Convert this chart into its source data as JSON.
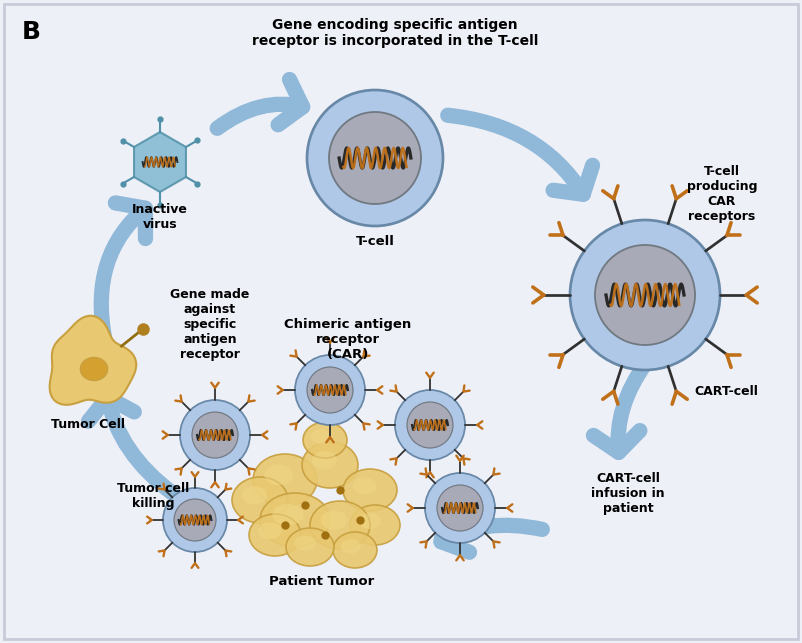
{
  "background_color": "#eef0f8",
  "border_color": "#c8ccd8",
  "title_B": "B",
  "top_label": "Gene encoding specific antigen\nreceptor is incorporated in the T-cell",
  "labels": {
    "inactive_virus": "Inactive\nvirus",
    "tumor_cell": "Tumor Cell",
    "gene_made": "Gene made\nagainst\nspecific\nantigen\nreceptor",
    "chimeric": "Chimeric antigen\nreceptor\n(CAR)",
    "t_cell": "T-cell",
    "t_cell_producing": "T-cell\nproducing\nCAR\nreceptors",
    "cart_cell": "CART-cell",
    "cart_infusion": "CART-cell\ninfusion in\npatient",
    "tumor_cell_killing": "Tumor cell\nkilling",
    "patient_tumor": "Patient Tumor"
  },
  "cell_blue_outer": "#b0c8e8",
  "cell_nucleus_color": "#a8aab8",
  "cell_border": "#6888a8",
  "tumor_cell_color": "#e8c870",
  "tumor_cell_border": "#c8a040",
  "virus_blue": "#80b8d0",
  "virus_border": "#5090a8",
  "arrow_color": "#90b8d8",
  "receptor_color": "#c07018",
  "receptor_dark": "#303030",
  "coil_dark": "#282828",
  "coil_orange": "#c07018"
}
